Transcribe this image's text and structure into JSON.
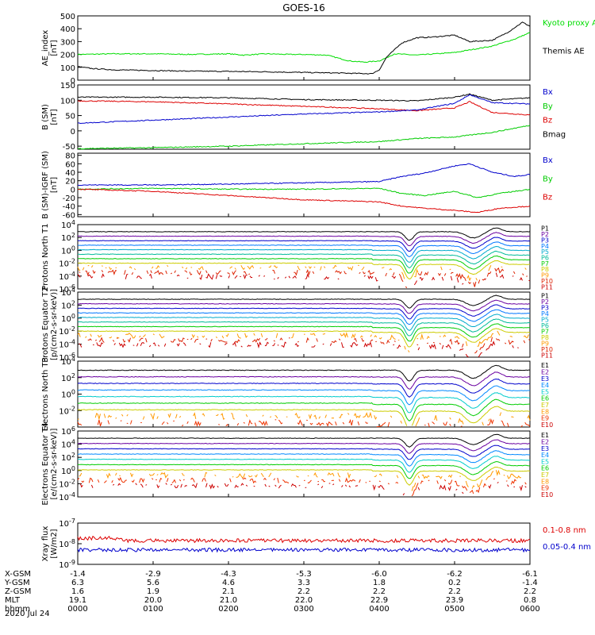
{
  "title": "GOES-16",
  "date": "2020 Jul 24",
  "chart_data": [
    {
      "type": "line",
      "ylabel": "AE_index [nT]",
      "ylim": [
        0,
        500
      ],
      "ytick_labels": [
        "0",
        "100",
        "200",
        "300",
        "400",
        "500"
      ],
      "legend": [
        {
          "label": "Kyoto proxy AE",
          "color": "#00dd00"
        },
        {
          "label": "Themis AE",
          "color": "#000000"
        }
      ],
      "series": [
        {
          "name": "Kyoto proxy AE",
          "color": "#00dd00",
          "t": [
            0,
            0.5,
            1,
            1.5,
            2,
            2.2,
            2.5,
            2.8,
            3.0,
            3.3,
            3.6,
            3.8,
            4.0,
            4.1,
            4.2,
            4.5,
            5,
            5.5,
            5.8,
            6
          ],
          "y": [
            200,
            205,
            205,
            200,
            205,
            195,
            205,
            200,
            200,
            195,
            150,
            140,
            150,
            175,
            205,
            195,
            215,
            265,
            320,
            370
          ]
        },
        {
          "name": "Themis AE",
          "color": "#000000",
          "t": [
            0,
            0.2,
            0.5,
            1,
            1.5,
            2,
            2.5,
            3.0,
            3.5,
            3.9,
            4.0,
            4.1,
            4.3,
            4.5,
            4.7,
            5.0,
            5.2,
            5.5,
            5.7,
            5.9,
            6
          ],
          "y": [
            105,
            90,
            80,
            75,
            70,
            68,
            65,
            60,
            55,
            50,
            80,
            180,
            290,
            330,
            335,
            350,
            300,
            310,
            370,
            450,
            420
          ]
        }
      ]
    },
    {
      "type": "line",
      "ylabel": "B (SM) [nT]",
      "ylim": [
        -60,
        150
      ],
      "ytick_labels": [
        "-50",
        "0",
        "50",
        "100",
        "150"
      ],
      "ytick_values": [
        -50,
        0,
        50,
        100,
        150
      ],
      "legend": [
        {
          "label": "Bx",
          "color": "#0000cc"
        },
        {
          "label": "By",
          "color": "#00cc00"
        },
        {
          "label": "Bz",
          "color": "#dd0000"
        },
        {
          "label": "Bmag",
          "color": "#000000"
        }
      ],
      "series": [
        {
          "name": "Bmag",
          "color": "#000000",
          "t": [
            0,
            1,
            2,
            3,
            4,
            4.5,
            5,
            5.2,
            5.5,
            6
          ],
          "y": [
            110,
            110,
            108,
            102,
            100,
            98,
            110,
            120,
            100,
            108
          ]
        },
        {
          "name": "Bz",
          "color": "#dd0000",
          "t": [
            0,
            1,
            2,
            3,
            4,
            4.5,
            5,
            5.2,
            5.5,
            6
          ],
          "y": [
            98,
            95,
            88,
            80,
            72,
            66,
            75,
            95,
            60,
            52
          ]
        },
        {
          "name": "Bx",
          "color": "#0000cc",
          "t": [
            0,
            1,
            2,
            3,
            4,
            4.5,
            5,
            5.2,
            5.5,
            6
          ],
          "y": [
            25,
            35,
            45,
            55,
            62,
            68,
            90,
            118,
            92,
            88
          ]
        },
        {
          "name": "By",
          "color": "#00cc00",
          "t": [
            0,
            1,
            2,
            3,
            4,
            4.5,
            5,
            5.5,
            6
          ],
          "y": [
            -58,
            -55,
            -50,
            -42,
            -35,
            -25,
            -20,
            -5,
            18
          ]
        }
      ]
    },
    {
      "type": "line",
      "ylabel": "B (SM)-IGRF (SM) [nT]",
      "ylim": [
        -65,
        85
      ],
      "ytick_labels": [
        "-60",
        "-40",
        "-20",
        "0",
        "20",
        "40",
        "60",
        "80"
      ],
      "legend": [
        {
          "label": "Bx",
          "color": "#0000cc"
        },
        {
          "label": "By",
          "color": "#00cc00"
        },
        {
          "label": "Bz",
          "color": "#dd0000"
        }
      ],
      "series": [
        {
          "name": "Bx",
          "color": "#0000cc",
          "t": [
            0,
            1,
            2,
            3,
            4,
            4.3,
            4.6,
            5,
            5.2,
            5.5,
            5.8,
            6
          ],
          "y": [
            10,
            10,
            12,
            15,
            18,
            30,
            38,
            55,
            60,
            40,
            30,
            35
          ]
        },
        {
          "name": "By",
          "color": "#00cc00",
          "t": [
            0,
            1,
            2,
            3,
            4,
            4.3,
            4.6,
            5,
            5.3,
            5.6,
            6
          ],
          "y": [
            0,
            2,
            0,
            0,
            2,
            -10,
            -15,
            -5,
            -20,
            -10,
            0
          ]
        },
        {
          "name": "Bz",
          "color": "#dd0000",
          "t": [
            0,
            1,
            2,
            3,
            4,
            4.3,
            4.6,
            5,
            5.3,
            5.6,
            6
          ],
          "y": [
            0,
            -5,
            -15,
            -25,
            -30,
            -40,
            -45,
            -50,
            -55,
            -45,
            -40
          ]
        }
      ]
    },
    {
      "type": "line",
      "ylabel": "Protons North T1",
      "log": true,
      "ylim": [
        -6,
        4
      ],
      "ytick_labels": [
        "10^4",
        "10^2",
        "10^0",
        "10^-2",
        "10^-4",
        "10^-6"
      ],
      "channels": [
        "P1",
        "P2",
        "P3",
        "P4",
        "P5",
        "P6",
        "P7",
        "P8",
        "P9",
        "P10",
        "P11"
      ],
      "channel_colors": [
        "#000000",
        "#6a00a0",
        "#0000cc",
        "#0077ff",
        "#00aacc",
        "#00bb99",
        "#00cc00",
        "#cccc00",
        "#ff9900",
        "#dd2200",
        "#cc0000"
      ]
    },
    {
      "type": "line",
      "ylabel": "Protons Equator T2 [p/(cm2-s-sr-keV)]",
      "log": true,
      "ylim": [
        -6,
        4
      ],
      "ytick_labels": [
        "10^4",
        "10^2",
        "10^0",
        "10^-2",
        "10^-4",
        "10^-6"
      ],
      "channels": [
        "P1",
        "P2",
        "P3",
        "P4",
        "P5",
        "P6",
        "P7",
        "P8",
        "P9",
        "P10",
        "P11"
      ],
      "channel_colors": [
        "#000000",
        "#6a00a0",
        "#0000cc",
        "#0077ff",
        "#00aacc",
        "#00bb99",
        "#00cc00",
        "#cccc00",
        "#ff9900",
        "#dd2200",
        "#cc0000"
      ]
    },
    {
      "type": "line",
      "ylabel": "Electrons North T3",
      "log": true,
      "ylim": [
        -4,
        4
      ],
      "ytick_labels": [
        "10^4",
        "10^2",
        "10^0",
        "10^-2"
      ],
      "channels": [
        "E1",
        "E2",
        "E3",
        "E4",
        "E5",
        "E6",
        "E7",
        "E8",
        "E9",
        "E10"
      ],
      "channel_colors": [
        "#000000",
        "#6a00a0",
        "#0000cc",
        "#0088ff",
        "#00cccc",
        "#00cc00",
        "#cccc00",
        "#ff9900",
        "#ee3300",
        "#cc0000"
      ]
    },
    {
      "type": "line",
      "ylabel": "Electrons Equator T4 [e/(cm2-s-sr-keV)]",
      "log": true,
      "ylim": [
        -4,
        6
      ],
      "ytick_labels": [
        "10^6",
        "10^4",
        "10^2",
        "10^0",
        "10^-2",
        "10^-4"
      ],
      "channels": [
        "E1",
        "E2",
        "E3",
        "E4",
        "E5",
        "E6",
        "E7",
        "E8",
        "E9",
        "E10"
      ],
      "channel_colors": [
        "#000000",
        "#6a00a0",
        "#0000cc",
        "#0088ff",
        "#00cccc",
        "#00cc00",
        "#cccc00",
        "#ff9900",
        "#ee3300",
        "#cc0000"
      ]
    },
    {
      "type": "line",
      "ylabel": "Xray flux [W/m2]",
      "log": true,
      "ylim": [
        -9,
        -7
      ],
      "ytick_labels": [
        "10^-7",
        "10^-8",
        "10^-9"
      ],
      "legend": [
        {
          "label": "0.1-0.8 nm",
          "color": "#dd0000"
        },
        {
          "label": "0.05-0.4 nm",
          "color": "#0000cc"
        }
      ],
      "series": [
        {
          "name": "0.1-0.8 nm",
          "color": "#dd0000",
          "level": -7.85
        },
        {
          "name": "0.05-0.4 nm",
          "color": "#0000cc",
          "level": -8.3
        }
      ]
    }
  ],
  "xaxis": {
    "row_labels": [
      "X-GSM",
      "Y-GSM",
      "Z-GSM",
      "MLT",
      "hhmm"
    ],
    "rows": [
      [
        "-1.4",
        "-2.9",
        "-4.3",
        "-5.3",
        "-6.0",
        "-6.2",
        "-6.1"
      ],
      [
        "6.3",
        "5.6",
        "4.6",
        "3.3",
        "1.8",
        "0.2",
        "-1.4"
      ],
      [
        "1.6",
        "1.9",
        "2.1",
        "2.2",
        "2.2",
        "2.2",
        "2.2"
      ],
      [
        "19.1",
        "20.0",
        "21.0",
        "22.0",
        "22.9",
        "23.9",
        "0.8"
      ],
      [
        "0000",
        "0100",
        "0200",
        "0300",
        "0400",
        "0500",
        "0600"
      ]
    ]
  }
}
